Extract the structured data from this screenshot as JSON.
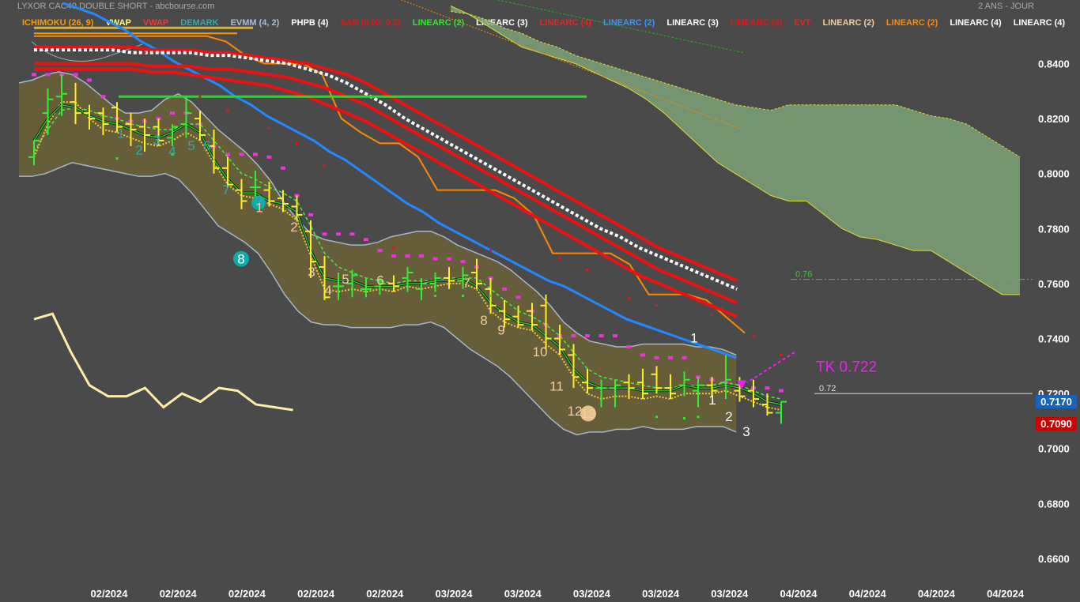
{
  "header": {
    "title": "LYXOR CAC40 DOUBLE SHORT - abcbourse.com",
    "period": "2 ANS - JOUR"
  },
  "legend": [
    {
      "label": "ICHIMOKU (26, 9)",
      "color": "#ff9900"
    },
    {
      "label": "VWAP",
      "color": "#ffff66"
    },
    {
      "label": "VWAP",
      "color": "#ff3333"
    },
    {
      "label": "DEMARK",
      "color": "#33aaaa"
    },
    {
      "label": "EVMM (4, 2)",
      "color": "#aabbdd"
    },
    {
      "label": "PHPB (4)",
      "color": "#ffffff"
    },
    {
      "label": "SAR (0.02, 0.2)",
      "color": "#ee1111"
    },
    {
      "label": "LINEARC (2)",
      "color": "#22ee22"
    },
    {
      "label": "LINEARC (3)",
      "color": "#ffffff"
    },
    {
      "label": "LINEARC (4)",
      "color": "#ee2222"
    },
    {
      "label": "LINEARC (2)",
      "color": "#3399ff"
    },
    {
      "label": "LINEARC (3)",
      "color": "#ffffff"
    },
    {
      "label": "LINEARC (4)",
      "color": "#ee1111"
    },
    {
      "label": "EVT",
      "color": "#ee2222"
    },
    {
      "label": "LINEARC (2)",
      "color": "#f5cc99"
    },
    {
      "label": "LINEARC (2)",
      "color": "#ff8800"
    },
    {
      "label": "LINEARC (4)",
      "color": "#ffffff"
    },
    {
      "label": "LINEARC (4)",
      "color": "#ffffff"
    }
  ],
  "chart_data": {
    "type": "line",
    "yaxis_ticks": [
      "0.8400",
      "0.8200",
      "0.8000",
      "0.7800",
      "0.7600",
      "0.7400",
      "0.7200",
      "0.7000",
      "0.6800",
      "0.6600"
    ],
    "ylim": [
      0.656,
      0.86
    ],
    "xaxis_ticks": [
      "02/2024",
      "02/2024",
      "02/2024",
      "02/2024",
      "02/2024",
      "03/2024",
      "03/2024",
      "03/2024",
      "03/2024",
      "03/2024",
      "04/2024",
      "04/2024",
      "04/2024",
      "04/2024"
    ],
    "price_tags": [
      {
        "value": "0.7170",
        "color": "#1565c0"
      },
      {
        "value": "0.7090",
        "color": "#cc0000"
      }
    ],
    "annotation": {
      "text": "TK 0.722",
      "color": "#ee22ee"
    },
    "levels": [
      {
        "label": "0.76",
        "value": 0.7615,
        "color": "#33cc33"
      },
      {
        "label": "0.72",
        "value": 0.72,
        "color": "#dddddd"
      }
    ],
    "green_level": 0.828,
    "candles": [
      {
        "o": 0.806,
        "h": 0.812,
        "l": 0.803,
        "c": 0.812
      },
      {
        "o": 0.822,
        "h": 0.831,
        "l": 0.814,
        "c": 0.827
      },
      {
        "o": 0.828,
        "h": 0.836,
        "l": 0.821,
        "c": 0.829
      },
      {
        "o": 0.826,
        "h": 0.833,
        "l": 0.818,
        "c": 0.822
      },
      {
        "o": 0.822,
        "h": 0.825,
        "l": 0.816,
        "c": 0.82
      },
      {
        "o": 0.822,
        "h": 0.824,
        "l": 0.814,
        "c": 0.818
      },
      {
        "o": 0.824,
        "h": 0.826,
        "l": 0.815,
        "c": 0.817
      },
      {
        "o": 0.818,
        "h": 0.822,
        "l": 0.81,
        "c": 0.816
      },
      {
        "o": 0.817,
        "h": 0.82,
        "l": 0.808,
        "c": 0.814
      },
      {
        "o": 0.817,
        "h": 0.82,
        "l": 0.81,
        "c": 0.812
      },
      {
        "o": 0.813,
        "h": 0.818,
        "l": 0.81,
        "c": 0.817
      },
      {
        "o": 0.818,
        "h": 0.828,
        "l": 0.813,
        "c": 0.822
      },
      {
        "o": 0.82,
        "h": 0.823,
        "l": 0.812,
        "c": 0.814
      },
      {
        "o": 0.81,
        "h": 0.816,
        "l": 0.8,
        "c": 0.802
      },
      {
        "o": 0.802,
        "h": 0.806,
        "l": 0.795,
        "c": 0.796
      },
      {
        "o": 0.794,
        "h": 0.798,
        "l": 0.787,
        "c": 0.79
      },
      {
        "o": 0.795,
        "h": 0.801,
        "l": 0.79,
        "c": 0.795
      },
      {
        "o": 0.794,
        "h": 0.797,
        "l": 0.788,
        "c": 0.79
      },
      {
        "o": 0.791,
        "h": 0.794,
        "l": 0.786,
        "c": 0.789
      },
      {
        "o": 0.788,
        "h": 0.792,
        "l": 0.783,
        "c": 0.785
      },
      {
        "o": 0.779,
        "h": 0.783,
        "l": 0.762,
        "c": 0.768
      },
      {
        "o": 0.766,
        "h": 0.77,
        "l": 0.754,
        "c": 0.755
      },
      {
        "o": 0.759,
        "h": 0.764,
        "l": 0.754,
        "c": 0.759
      },
      {
        "o": 0.76,
        "h": 0.765,
        "l": 0.755,
        "c": 0.763
      },
      {
        "o": 0.758,
        "h": 0.762,
        "l": 0.755,
        "c": 0.758
      },
      {
        "o": 0.759,
        "h": 0.762,
        "l": 0.756,
        "c": 0.76
      },
      {
        "o": 0.76,
        "h": 0.763,
        "l": 0.757,
        "c": 0.759
      },
      {
        "o": 0.762,
        "h": 0.766,
        "l": 0.757,
        "c": 0.764
      },
      {
        "o": 0.758,
        "h": 0.762,
        "l": 0.754,
        "c": 0.76
      },
      {
        "o": 0.76,
        "h": 0.764,
        "l": 0.757,
        "c": 0.762
      },
      {
        "o": 0.762,
        "h": 0.766,
        "l": 0.758,
        "c": 0.761
      },
      {
        "o": 0.761,
        "h": 0.766,
        "l": 0.758,
        "c": 0.763
      },
      {
        "o": 0.764,
        "h": 0.769,
        "l": 0.758,
        "c": 0.76
      },
      {
        "o": 0.758,
        "h": 0.762,
        "l": 0.749,
        "c": 0.752
      },
      {
        "o": 0.75,
        "h": 0.754,
        "l": 0.744,
        "c": 0.747
      },
      {
        "o": 0.748,
        "h": 0.752,
        "l": 0.744,
        "c": 0.745
      },
      {
        "o": 0.75,
        "h": 0.753,
        "l": 0.743,
        "c": 0.745
      },
      {
        "o": 0.752,
        "h": 0.756,
        "l": 0.736,
        "c": 0.74
      },
      {
        "o": 0.74,
        "h": 0.745,
        "l": 0.734,
        "c": 0.736
      },
      {
        "o": 0.734,
        "h": 0.738,
        "l": 0.722,
        "c": 0.726
      },
      {
        "o": 0.724,
        "h": 0.729,
        "l": 0.72,
        "c": 0.722
      },
      {
        "o": 0.722,
        "h": 0.725,
        "l": 0.715,
        "c": 0.722
      },
      {
        "o": 0.722,
        "h": 0.725,
        "l": 0.715,
        "c": 0.723
      },
      {
        "o": 0.724,
        "h": 0.727,
        "l": 0.718,
        "c": 0.722
      },
      {
        "o": 0.724,
        "h": 0.729,
        "l": 0.718,
        "c": 0.72
      },
      {
        "o": 0.727,
        "h": 0.73,
        "l": 0.72,
        "c": 0.722
      },
      {
        "o": 0.722,
        "h": 0.727,
        "l": 0.718,
        "c": 0.72
      },
      {
        "o": 0.723,
        "h": 0.728,
        "l": 0.719,
        "c": 0.725
      },
      {
        "o": 0.721,
        "h": 0.726,
        "l": 0.715,
        "c": 0.723
      },
      {
        "o": 0.723,
        "h": 0.726,
        "l": 0.719,
        "c": 0.721
      },
      {
        "o": 0.724,
        "h": 0.734,
        "l": 0.718,
        "c": 0.725
      },
      {
        "o": 0.721,
        "h": 0.726,
        "l": 0.717,
        "c": 0.719
      },
      {
        "o": 0.721,
        "h": 0.725,
        "l": 0.715,
        "c": 0.718
      },
      {
        "o": 0.716,
        "h": 0.72,
        "l": 0.712,
        "c": 0.713
      },
      {
        "o": 0.713,
        "h": 0.717,
        "l": 0.709,
        "c": 0.717
      }
    ],
    "ma_green": [
      0.812,
      0.82,
      0.825,
      0.824,
      0.821,
      0.819,
      0.818,
      0.816,
      0.814,
      0.813,
      0.815,
      0.818,
      0.815,
      0.805,
      0.798,
      0.793,
      0.793,
      0.79,
      0.789,
      0.786,
      0.772,
      0.762,
      0.761,
      0.761,
      0.759,
      0.759,
      0.759,
      0.76,
      0.76,
      0.761,
      0.761,
      0.762,
      0.759,
      0.753,
      0.749,
      0.746,
      0.745,
      0.741,
      0.737,
      0.729,
      0.724,
      0.722,
      0.722,
      0.722,
      0.721,
      0.721,
      0.721,
      0.723,
      0.722,
      0.722,
      0.723,
      0.722,
      0.72,
      0.717,
      0.716
    ],
    "ma_green_dash": [
      0.808,
      0.816,
      0.823,
      0.824,
      0.823,
      0.821,
      0.82,
      0.818,
      0.817,
      0.816,
      0.816,
      0.818,
      0.818,
      0.812,
      0.806,
      0.8,
      0.798,
      0.795,
      0.793,
      0.79,
      0.781,
      0.771,
      0.766,
      0.764,
      0.762,
      0.761,
      0.76,
      0.761,
      0.761,
      0.761,
      0.762,
      0.762,
      0.762,
      0.758,
      0.754,
      0.75,
      0.748,
      0.745,
      0.741,
      0.735,
      0.729,
      0.726,
      0.725,
      0.724,
      0.723,
      0.722,
      0.722,
      0.723,
      0.723,
      0.723,
      0.724,
      0.723,
      0.721,
      0.719,
      0.718
    ],
    "ma_yellow_dot": [
      0.806,
      0.818,
      0.826,
      0.826,
      0.82,
      0.816,
      0.815,
      0.813,
      0.811,
      0.81,
      0.812,
      0.815,
      0.812,
      0.804,
      0.796,
      0.792,
      0.791,
      0.789,
      0.787,
      0.783,
      0.77,
      0.758,
      0.757,
      0.758,
      0.757,
      0.758,
      0.757,
      0.759,
      0.758,
      0.759,
      0.76,
      0.76,
      0.758,
      0.75,
      0.746,
      0.744,
      0.743,
      0.738,
      0.734,
      0.726,
      0.72,
      0.718,
      0.719,
      0.719,
      0.718,
      0.719,
      0.718,
      0.72,
      0.72,
      0.72,
      0.721,
      0.719,
      0.717,
      0.715,
      0.714
    ],
    "psar": [
      0.836,
      0.836,
      0.836,
      0.836,
      0.834,
      0.828,
      0.82,
      0.819,
      0.819,
      0.82,
      0.822,
      0.822,
      0.818,
      0.81,
      0.807,
      0.807,
      0.807,
      0.806,
      0.802,
      0.792,
      0.785,
      0.778,
      0.778,
      0.778,
      0.776,
      0.772,
      0.77,
      0.77,
      0.77,
      0.769,
      0.769,
      0.768,
      0.766,
      0.762,
      0.758,
      0.755,
      0.75,
      0.745,
      0.741,
      0.741,
      0.741,
      0.741,
      0.741,
      0.737,
      0.734,
      0.733,
      0.733,
      0.733,
      0.726,
      0.725,
      0.724,
      0.723,
      0.722,
      0.722,
      0.721
    ],
    "band_upper": [
      0.833,
      0.834,
      0.836,
      0.837,
      0.836,
      0.833,
      0.829,
      0.825,
      0.822,
      0.822,
      0.823,
      0.827,
      0.829,
      0.826,
      0.821,
      0.816,
      0.812,
      0.808,
      0.803,
      0.797,
      0.789,
      0.783,
      0.778,
      0.776,
      0.775,
      0.774,
      0.774,
      0.775,
      0.777,
      0.778,
      0.779,
      0.779,
      0.777,
      0.774,
      0.772,
      0.77,
      0.768,
      0.765,
      0.761,
      0.757,
      0.752,
      0.746,
      0.742,
      0.739,
      0.738,
      0.737,
      0.737,
      0.738,
      0.738,
      0.738,
      0.738,
      0.737,
      0.737,
      0.736,
      0.734
    ],
    "band_lower": [
      0.799,
      0.799,
      0.8,
      0.802,
      0.804,
      0.803,
      0.802,
      0.801,
      0.8,
      0.799,
      0.799,
      0.8,
      0.798,
      0.793,
      0.787,
      0.781,
      0.778,
      0.775,
      0.771,
      0.764,
      0.756,
      0.75,
      0.746,
      0.745,
      0.745,
      0.744,
      0.744,
      0.744,
      0.744,
      0.745,
      0.745,
      0.746,
      0.744,
      0.74,
      0.736,
      0.733,
      0.73,
      0.726,
      0.721,
      0.716,
      0.711,
      0.707,
      0.705,
      0.706,
      0.706,
      0.707,
      0.707,
      0.708,
      0.707,
      0.707,
      0.707,
      0.708,
      0.708,
      0.708,
      0.706
    ],
    "vwap_white": [
      0.845,
      0.845,
      0.845,
      0.845,
      0.845,
      0.844,
      0.844,
      0.844,
      0.844,
      0.843,
      0.843,
      0.842,
      0.841,
      0.84,
      0.838,
      0.836,
      0.833,
      0.829,
      0.825,
      0.82,
      0.816,
      0.812,
      0.808,
      0.804,
      0.8,
      0.796,
      0.792,
      0.788,
      0.784,
      0.78,
      0.777,
      0.773,
      0.77,
      0.767,
      0.764,
      0.761,
      0.758
    ],
    "vwap_red1": [
      0.846,
      0.846,
      0.846,
      0.846,
      0.846,
      0.846,
      0.845,
      0.845,
      0.845,
      0.844,
      0.844,
      0.843,
      0.842,
      0.841,
      0.84,
      0.838,
      0.836,
      0.833,
      0.829,
      0.825,
      0.821,
      0.817,
      0.813,
      0.809,
      0.805,
      0.801,
      0.797,
      0.793,
      0.789,
      0.785,
      0.781,
      0.777,
      0.773,
      0.77,
      0.767,
      0.764,
      0.761
    ],
    "vwap_red2": [
      0.84,
      0.84,
      0.84,
      0.84,
      0.84,
      0.84,
      0.839,
      0.839,
      0.839,
      0.838,
      0.838,
      0.837,
      0.836,
      0.835,
      0.833,
      0.831,
      0.828,
      0.825,
      0.821,
      0.817,
      0.813,
      0.809,
      0.805,
      0.801,
      0.797,
      0.793,
      0.789,
      0.785,
      0.781,
      0.777,
      0.773,
      0.769,
      0.765,
      0.762,
      0.759,
      0.756,
      0.753
    ],
    "vwap_red3": [
      0.838,
      0.838,
      0.838,
      0.838,
      0.838,
      0.838,
      0.837,
      0.837,
      0.836,
      0.835,
      0.834,
      0.833,
      0.832,
      0.83,
      0.828,
      0.825,
      0.822,
      0.819,
      0.815,
      0.811,
      0.807,
      0.803,
      0.799,
      0.795,
      0.791,
      0.787,
      0.783,
      0.779,
      0.775,
      0.771,
      0.767,
      0.763,
      0.76,
      0.757,
      0.754,
      0.751,
      0.748
    ],
    "ma_blue": [
      0.862,
      0.86,
      0.858,
      0.855,
      0.852,
      0.848,
      0.845,
      0.841,
      0.838,
      0.835,
      0.832,
      0.828,
      0.825,
      0.821,
      0.818,
      0.815,
      0.812,
      0.808,
      0.805,
      0.801,
      0.797,
      0.793,
      0.789,
      0.786,
      0.782,
      0.779,
      0.776,
      0.773,
      0.77,
      0.767,
      0.764,
      0.761,
      0.759,
      0.756,
      0.753,
      0.75,
      0.747,
      0.745,
      0.743,
      0.741,
      0.739,
      0.737,
      0.735,
      0.733
    ],
    "ichimoku_orange": [
      0.85,
      0.85,
      0.85,
      0.85,
      0.85,
      0.85,
      0.85,
      0.85,
      0.85,
      0.85,
      0.848,
      0.843,
      0.84,
      0.84,
      0.84,
      0.836,
      0.82,
      0.815,
      0.811,
      0.811,
      0.806,
      0.794,
      0.794,
      0.794,
      0.794,
      0.791,
      0.785,
      0.771,
      0.771,
      0.771,
      0.771,
      0.767,
      0.756,
      0.756,
      0.756,
      0.754,
      0.748,
      0.742
    ],
    "cloud_top": [
      0.859,
      0.858,
      0.856,
      0.853,
      0.851,
      0.848,
      0.846,
      0.843,
      0.841,
      0.839,
      0.837,
      0.835,
      0.833,
      0.831,
      0.829,
      0.827,
      0.825,
      0.824,
      0.823,
      0.825,
      0.825,
      0.825,
      0.825,
      0.825,
      0.825,
      0.825,
      0.823,
      0.821,
      0.82,
      0.818,
      0.814,
      0.81,
      0.806
    ],
    "cloud_bottom": [
      0.861,
      0.858,
      0.854,
      0.85,
      0.846,
      0.844,
      0.842,
      0.84,
      0.837,
      0.834,
      0.831,
      0.827,
      0.822,
      0.816,
      0.81,
      0.804,
      0.8,
      0.796,
      0.792,
      0.79,
      0.79,
      0.785,
      0.78,
      0.777,
      0.776,
      0.774,
      0.772,
      0.772,
      0.768,
      0.764,
      0.76,
      0.756,
      0.756
    ],
    "lower_line": [
      0.747,
      0.749,
      0.735,
      0.723,
      0.719,
      0.719,
      0.722,
      0.715,
      0.72,
      0.717,
      0.722,
      0.721,
      0.716,
      0.715,
      0.714
    ],
    "demark_numbers": [
      {
        "t": "1",
        "c": "#33aaaa"
      },
      {
        "t": "2",
        "c": "#33aaaa"
      },
      {
        "t": "3",
        "c": "#33aaaa"
      },
      {
        "t": "4",
        "c": "#33aaaa"
      },
      {
        "t": "5",
        "c": "#33aaaa"
      },
      {
        "t": "6",
        "c": "#33aaaa"
      },
      {
        "t": "7",
        "c": "#33aaaa"
      },
      {
        "t": "9",
        "c": "#33aaaa"
      },
      {
        "t": "8",
        "c": "#33aaaa"
      },
      {
        "t": "1",
        "c": "#f5cc99"
      },
      {
        "t": "2",
        "c": "#f5cc99"
      },
      {
        "t": "3",
        "c": "#f5cc99"
      },
      {
        "t": "4",
        "c": "#f5cc99"
      },
      {
        "t": "5",
        "c": "#f5cc99"
      },
      {
        "t": "6",
        "c": "#f5cc99"
      },
      {
        "t": "7",
        "c": "#f5cc99"
      },
      {
        "t": "8",
        "c": "#f5cc99"
      },
      {
        "t": "9",
        "c": "#f5cc99"
      },
      {
        "t": "10",
        "c": "#f5cc99"
      },
      {
        "t": "11",
        "c": "#f5cc99"
      },
      {
        "t": "12",
        "c": "#f5cc99"
      },
      {
        "t": "13",
        "c": "#f5cc99"
      },
      {
        "t": "1",
        "c": "#ffffff"
      },
      {
        "t": "1",
        "c": "#ffffff"
      },
      {
        "t": "2",
        "c": "#ffffff"
      },
      {
        "t": "3",
        "c": "#ffffff"
      }
    ]
  }
}
